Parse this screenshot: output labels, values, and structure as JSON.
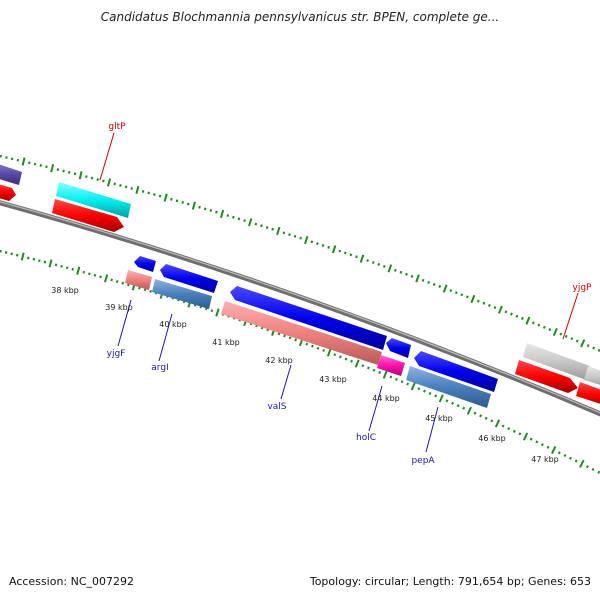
{
  "title": "Candidatus Blochmannia pennsylvanicus str. BPEN, complete ge...",
  "footer": {
    "accession": "Accession: NC_007292",
    "summary": "Topology: circular; Length: 791,654 bp; Genes: 653"
  },
  "colors": {
    "backbone": "#8a8a8a",
    "tick": "#1f8a1f",
    "forward_label": "#cc0000",
    "reverse_label": "#1a1aa8"
  },
  "kbp_labels": [
    "38 kbp",
    "39 kbp",
    "40 kbp",
    "41 kbp",
    "42 kbp",
    "43 kbp",
    "44 kbp",
    "45 kbp",
    "46 kbp",
    "47 kbp"
  ],
  "genes": [
    {
      "name": "gltP",
      "strand": "forward"
    },
    {
      "name": "yjgP",
      "strand": "forward"
    },
    {
      "name": "yjgF",
      "strand": "reverse"
    },
    {
      "name": "argI",
      "strand": "reverse"
    },
    {
      "name": "valS",
      "strand": "reverse"
    },
    {
      "name": "holC",
      "strand": "reverse"
    },
    {
      "name": "pepA",
      "strand": "reverse"
    }
  ]
}
